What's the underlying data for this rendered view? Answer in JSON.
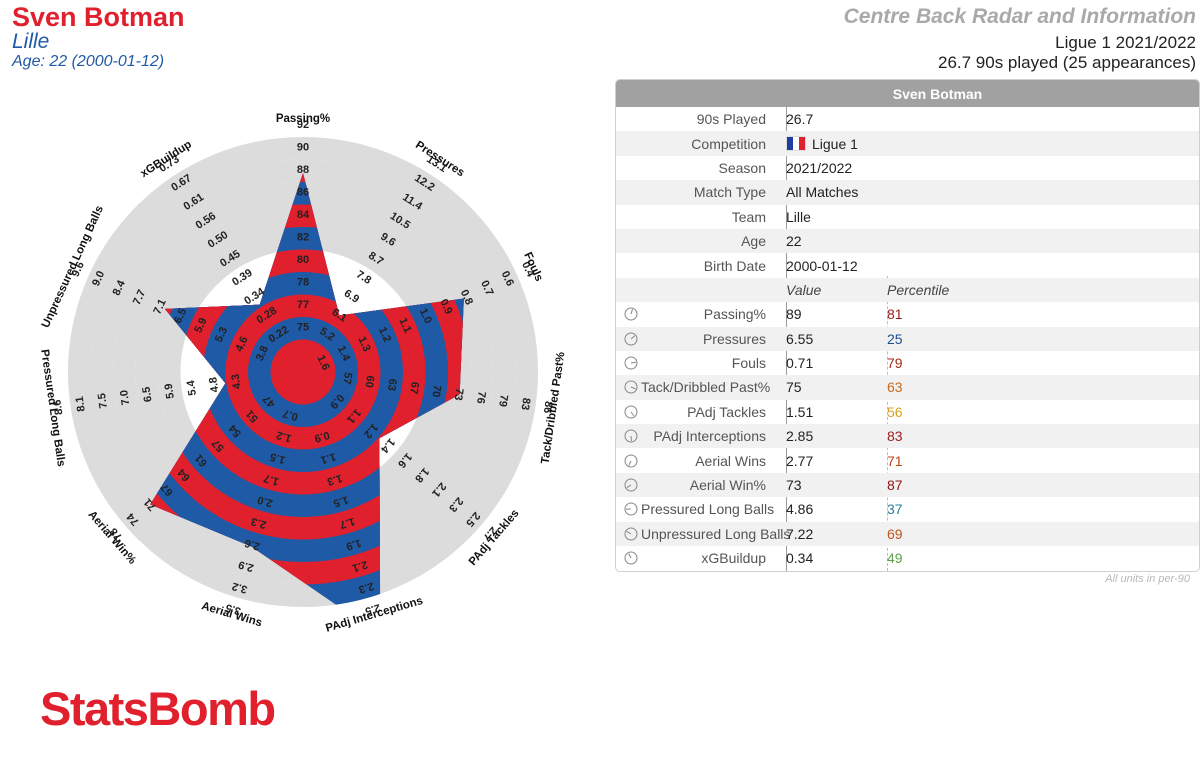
{
  "header": {
    "player_name": "Sven Botman",
    "team": "Lille",
    "age_line": "Age: 22 (2000-01-12)",
    "radar_title": "Centre Back Radar and Information",
    "competition_line": "Ligue 1 2021/2022",
    "played_line": "26.7 90s played (25 appearances)"
  },
  "colors": {
    "red": "#e0202d",
    "blue": "#1f5aa6",
    "ring_gray": "#dcdcdc"
  },
  "chart_data": {
    "type": "radar",
    "axes": [
      {
        "label": "Passing%",
        "ticks": [
          "75",
          "77",
          "78",
          "80",
          "82",
          "84",
          "86",
          "88",
          "90",
          "92"
        ],
        "value": 89
      },
      {
        "label": "Pressures",
        "ticks": [
          "5.2",
          "6.1",
          "6.9",
          "7.8",
          "8.7",
          "9.6",
          "10.5",
          "11.4",
          "12.2",
          "13.1"
        ],
        "value": 6.55
      },
      {
        "label": "Fouls",
        "ticks": [
          "1.6",
          "1.4",
          "1.3",
          "1.2",
          "1.1",
          "1.0",
          "0.9",
          "0.8",
          "0.7",
          "0.6",
          "0.4"
        ],
        "value": 0.71
      },
      {
        "label": "Tack/Dribbled Past%",
        "ticks": [
          "57",
          "60",
          "63",
          "67",
          "70",
          "73",
          "76",
          "79",
          "83",
          "86"
        ],
        "value": 75
      },
      {
        "label": "PAdj Tackles",
        "ticks": [
          "0.9",
          "1.1",
          "1.2",
          "1.4",
          "1.6",
          "1.8",
          "2.1",
          "2.3",
          "2.5",
          "2.7"
        ],
        "value": 1.51
      },
      {
        "label": "PAdj Interceptions",
        "ticks": [
          "0.9",
          "1.1",
          "1.3",
          "1.5",
          "1.7",
          "1.9",
          "2.1",
          "2.3",
          "2.5"
        ],
        "value": 2.85
      },
      {
        "label": "Aerial Wins",
        "ticks": [
          "0.7",
          "1.2",
          "1.5",
          "1.7",
          "2.0",
          "2.3",
          "2.6",
          "2.9",
          "3.2",
          "3.5"
        ],
        "value": 2.77
      },
      {
        "label": "Aerial Win%",
        "ticks": [
          "47",
          "51",
          "54",
          "57",
          "61",
          "64",
          "67",
          "71",
          "74",
          "78"
        ],
        "value": 73
      },
      {
        "label": "Pressured Long Balls",
        "ticks": [
          "4.3",
          "4.8",
          "5.4",
          "5.9",
          "6.5",
          "7.0",
          "7.5",
          "8.1",
          "8.6"
        ],
        "value": 4.86
      },
      {
        "label": "Unpressured Long Balls",
        "ticks": [
          "3.8",
          "4.6",
          "5.3",
          "5.9",
          "6.5",
          "7.1",
          "7.7",
          "8.4",
          "9.0",
          "9.6"
        ],
        "value": 7.22
      },
      {
        "label": "xGBuildup",
        "ticks": [
          "0.22",
          "0.28",
          "0.34",
          "0.39",
          "0.45",
          "0.50",
          "0.56",
          "0.61",
          "0.67",
          "0.73"
        ],
        "value": 0.34
      }
    ],
    "outer_tick_positions": [
      4.7,
      4.0,
      0.9,
      0.7
    ]
  },
  "table": {
    "title": "Sven Botman",
    "info_rows": [
      {
        "label": "90s Played",
        "value": "26.7"
      },
      {
        "label": "Competition",
        "value": "Ligue 1"
      },
      {
        "label": "Season",
        "value": "2021/2022"
      },
      {
        "label": "Match Type",
        "value": "All Matches"
      },
      {
        "label": "Team",
        "value": "Lille"
      },
      {
        "label": "Age",
        "value": "22"
      },
      {
        "label": "Birth Date",
        "value": "2000-01-12"
      }
    ],
    "col_value": "Value",
    "col_percentile": "Percentile",
    "stat_rows": [
      {
        "label": "Passing%",
        "value": "89",
        "percentile": "81",
        "color": "#9b1c1c"
      },
      {
        "label": "Pressures",
        "value": "6.55",
        "percentile": "25",
        "color": "#1f4e8c"
      },
      {
        "label": "Fouls",
        "value": "0.71",
        "percentile": "79",
        "color": "#a52a1a"
      },
      {
        "label": "Tack/Dribbled Past%",
        "value": "75",
        "percentile": "63",
        "color": "#c86a1a"
      },
      {
        "label": "PAdj Tackles",
        "value": "1.51",
        "percentile": "56",
        "color": "#d9a21b"
      },
      {
        "label": "PAdj Interceptions",
        "value": "2.85",
        "percentile": "83",
        "color": "#9b1c1c"
      },
      {
        "label": "Aerial Wins",
        "value": "2.77",
        "percentile": "71",
        "color": "#b8451a"
      },
      {
        "label": "Aerial Win%",
        "value": "73",
        "percentile": "87",
        "color": "#8e1414"
      },
      {
        "label": "Pressured Long Balls",
        "value": "4.86",
        "percentile": "37",
        "color": "#2a7f9e"
      },
      {
        "label": "Unpressured Long Balls",
        "value": "7.22",
        "percentile": "69",
        "color": "#c0561a"
      },
      {
        "label": "xGBuildup",
        "value": "0.34",
        "percentile": "49",
        "color": "#5ea04a"
      }
    ],
    "units_note": "All units in per-90"
  },
  "logo_text": "StatsBomb"
}
